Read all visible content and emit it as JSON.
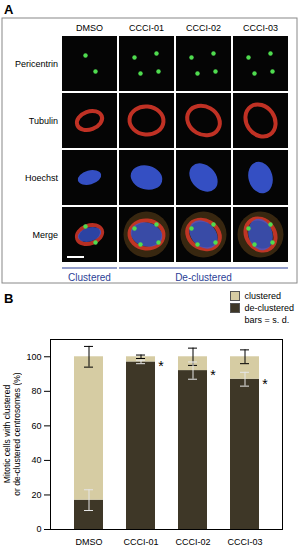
{
  "panel_a": {
    "label": "A",
    "columns": [
      "DMSO",
      "CCCI-01",
      "CCCI-02",
      "CCCI-03"
    ],
    "rows": [
      "Pericentrin",
      "Tubulin",
      "Hoechst",
      "Merge"
    ],
    "groups": [
      {
        "label": "Clustered",
        "columns": 1
      },
      {
        "label": "De-clustered",
        "columns": 3
      }
    ]
  },
  "panel_b": {
    "label": "B"
  },
  "chart_data": {
    "type": "bar",
    "stacked": true,
    "legend": "top-right",
    "y_label": "Mitotic cells with clustered or de-clustered centrosomes (%)",
    "categories": [
      "DMSO",
      "CCCI-01",
      "CCCI-02",
      "CCCI-03"
    ],
    "series": [
      {
        "name": "clustered",
        "color": "#d6cca3",
        "values": [
          83,
          3,
          8,
          13
        ],
        "errors": [
          6,
          1,
          5,
          4
        ]
      },
      {
        "name": "de-clustered",
        "color": "#3e3727",
        "values": [
          17,
          97,
          92,
          87
        ],
        "errors": [
          6,
          1,
          5,
          4
        ]
      }
    ],
    "error_bar_note": "bars = s. d.",
    "annotations": [
      {
        "x": "CCCI-01",
        "y": 97,
        "text": "*"
      },
      {
        "x": "CCCI-02",
        "y": 92,
        "text": "*"
      },
      {
        "x": "CCCI-03",
        "y": 87,
        "text": "*"
      }
    ],
    "ylim": [
      0,
      110
    ],
    "yticks": [
      0,
      20,
      40,
      60,
      80,
      100
    ]
  }
}
